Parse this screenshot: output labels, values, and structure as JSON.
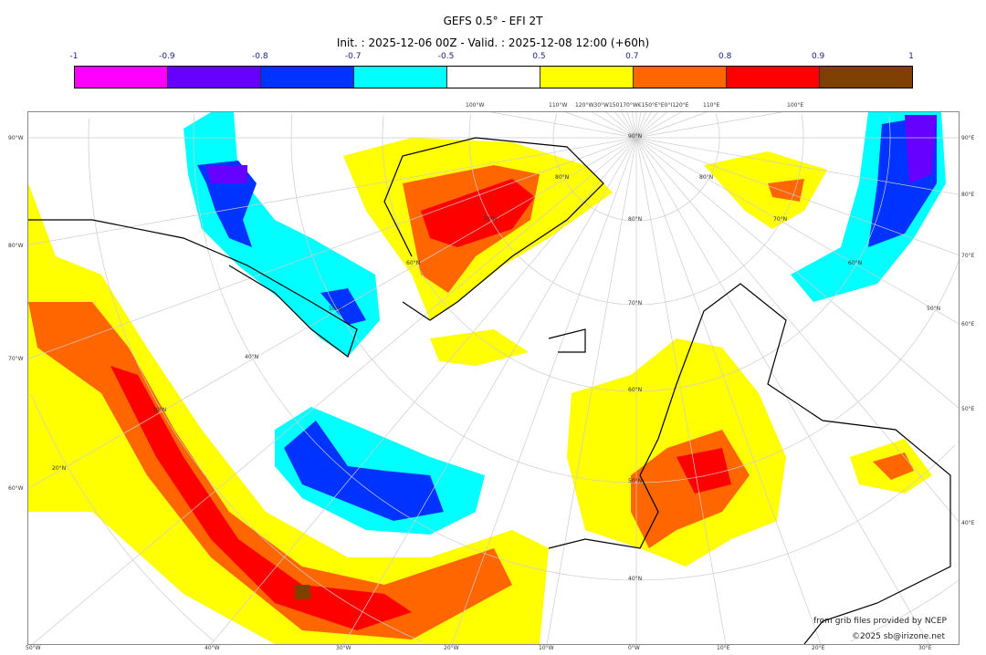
{
  "title": "GEFS 0.5° - EFI 2T",
  "subtitle": "Init. : 2025-12-06 00Z - Valid. : 2025-12-08 12:00 (+60h)",
  "colorbar": {
    "ticks": [
      "-1",
      "-0.9",
      "-0.8",
      "-0.7",
      "-0.5",
      "0.5",
      "0.7",
      "0.8",
      "0.9",
      "1"
    ],
    "colors": [
      "#ff00ff",
      "#6600ff",
      "#0033ff",
      "#00ffff",
      "#ffffff",
      "#ffff00",
      "#ff6600",
      "#ff0000",
      "#7f3f00"
    ]
  },
  "axes": {
    "left": [
      "90°W",
      "80°W",
      "70°W",
      "60°W"
    ],
    "right": [
      "90°E",
      "80°E",
      "70°E",
      "60°E",
      "50°E",
      "40°E"
    ],
    "bottom": [
      "50°W",
      "40°W",
      "30°W",
      "20°W",
      "10°W",
      "0°W",
      "10°E",
      "20°E",
      "30°E"
    ],
    "top": [
      "100°W",
      "110°W",
      "120°W30°W150170°W€150°E°E0°I120°E",
      "110°E",
      "100°E"
    ],
    "lat_labels": [
      "90°N",
      "80°N",
      "70°N",
      "60°N",
      "50°N",
      "40°N",
      "80°N",
      "80°N",
      "70°N",
      "70°N",
      "60°N",
      "60°N",
      "50°N",
      "50°N",
      "40°N",
      "30°N",
      "20°N"
    ]
  },
  "credits": {
    "line1": "from grib files provided by NCEP",
    "line2": "©2025 sb@irizone.net"
  }
}
